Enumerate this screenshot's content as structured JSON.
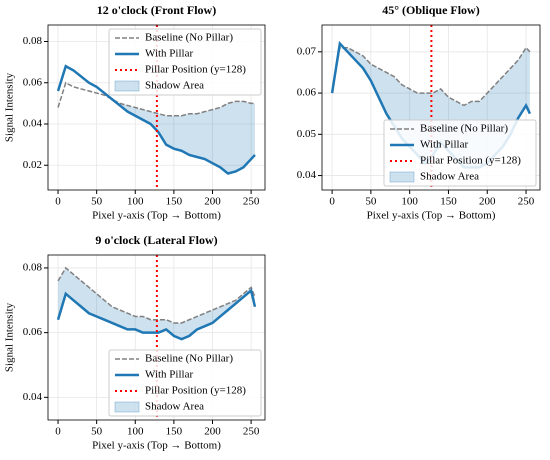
{
  "chart_data": [
    {
      "type": "line",
      "title": "12 o'clock (Front Flow)",
      "xlabel": "Pixel y-axis (Top → Bottom)",
      "ylabel": "Signal Intensity",
      "x": [
        0,
        10,
        20,
        30,
        40,
        50,
        60,
        70,
        80,
        90,
        100,
        110,
        120,
        130,
        140,
        150,
        160,
        170,
        180,
        190,
        200,
        210,
        220,
        230,
        240,
        250,
        255
      ],
      "series": [
        {
          "name": "Baseline (No Pillar)",
          "color": "#808080",
          "values": [
            0.048,
            0.06,
            0.058,
            0.057,
            0.056,
            0.055,
            0.054,
            0.052,
            0.05,
            0.049,
            0.048,
            0.047,
            0.046,
            0.045,
            0.044,
            0.044,
            0.044,
            0.045,
            0.045,
            0.046,
            0.047,
            0.048,
            0.05,
            0.051,
            0.051,
            0.05,
            0.05
          ]
        },
        {
          "name": "With Pillar",
          "color": "#1f77b4",
          "values": [
            0.056,
            0.068,
            0.066,
            0.063,
            0.06,
            0.058,
            0.055,
            0.052,
            0.049,
            0.046,
            0.044,
            0.042,
            0.04,
            0.036,
            0.03,
            0.028,
            0.027,
            0.025,
            0.024,
            0.023,
            0.021,
            0.019,
            0.016,
            0.017,
            0.019,
            0.023,
            0.025
          ]
        }
      ],
      "pillar": {
        "name": "Pillar Position (y=128)",
        "x": 128,
        "color": "#ff0000"
      },
      "shadow": {
        "name": "Shadow Area",
        "color": "#1f77b4"
      },
      "xlim": [
        -13,
        268
      ],
      "ylim": [
        0.008,
        0.088
      ],
      "xticks": [
        0,
        50,
        100,
        150,
        200,
        250
      ],
      "yticks": [
        0.02,
        0.04,
        0.06,
        0.08
      ],
      "grid": true,
      "legend": "upper right"
    },
    {
      "type": "line",
      "title": "45° (Oblique Flow)",
      "xlabel": "Pixel y-axis (Top → Bottom)",
      "x": [
        0,
        10,
        20,
        30,
        40,
        50,
        60,
        70,
        80,
        90,
        100,
        110,
        120,
        130,
        140,
        150,
        160,
        170,
        180,
        190,
        200,
        210,
        220,
        230,
        240,
        250,
        255
      ],
      "series": [
        {
          "name": "Baseline (No Pillar)",
          "color": "#808080",
          "values": [
            0.06,
            0.071,
            0.071,
            0.07,
            0.069,
            0.067,
            0.066,
            0.065,
            0.064,
            0.062,
            0.061,
            0.06,
            0.06,
            0.06,
            0.061,
            0.059,
            0.058,
            0.057,
            0.058,
            0.058,
            0.06,
            0.062,
            0.064,
            0.066,
            0.068,
            0.071,
            0.07
          ]
        },
        {
          "name": "With Pillar",
          "color": "#1f77b4",
          "values": [
            0.06,
            0.072,
            0.07,
            0.068,
            0.066,
            0.063,
            0.059,
            0.055,
            0.052,
            0.049,
            0.047,
            0.045,
            0.043,
            0.045,
            0.048,
            0.046,
            0.044,
            0.042,
            0.042,
            0.042,
            0.043,
            0.045,
            0.047,
            0.05,
            0.054,
            0.057,
            0.055
          ]
        }
      ],
      "pillar": {
        "name": "Pillar Position (y=128)",
        "x": 128,
        "color": "#ff0000"
      },
      "shadow": {
        "name": "Shadow Area",
        "color": "#1f77b4"
      },
      "xlim": [
        -13,
        268
      ],
      "ylim": [
        0.0365,
        0.0765
      ],
      "xticks": [
        0,
        50,
        100,
        150,
        200,
        250
      ],
      "yticks": [
        0.04,
        0.05,
        0.06,
        0.07
      ],
      "grid": true,
      "legend": "lower right"
    },
    {
      "type": "line",
      "title": "9 o'clock (Lateral Flow)",
      "xlabel": "Pixel y-axis (Top → Bottom)",
      "ylabel": "Signal Intensity",
      "x": [
        0,
        10,
        20,
        30,
        40,
        50,
        60,
        70,
        80,
        90,
        100,
        110,
        120,
        130,
        140,
        150,
        160,
        170,
        180,
        190,
        200,
        210,
        220,
        230,
        240,
        250,
        255
      ],
      "series": [
        {
          "name": "Baseline (No Pillar)",
          "color": "#808080",
          "values": [
            0.076,
            0.08,
            0.078,
            0.076,
            0.074,
            0.072,
            0.07,
            0.068,
            0.067,
            0.066,
            0.065,
            0.065,
            0.064,
            0.064,
            0.064,
            0.063,
            0.063,
            0.064,
            0.065,
            0.066,
            0.067,
            0.068,
            0.069,
            0.07,
            0.072,
            0.074,
            0.071
          ]
        },
        {
          "name": "With Pillar",
          "color": "#1f77b4",
          "values": [
            0.064,
            0.072,
            0.07,
            0.068,
            0.066,
            0.065,
            0.064,
            0.063,
            0.062,
            0.061,
            0.061,
            0.06,
            0.06,
            0.06,
            0.061,
            0.059,
            0.058,
            0.059,
            0.061,
            0.062,
            0.063,
            0.065,
            0.067,
            0.069,
            0.071,
            0.073,
            0.068
          ]
        }
      ],
      "pillar": {
        "name": "Pillar Position (y=128)",
        "x": 128,
        "color": "#ff0000"
      },
      "shadow": {
        "name": "Shadow Area",
        "color": "#1f77b4"
      },
      "xlim": [
        -13,
        268
      ],
      "ylim": [
        0.033,
        0.084
      ],
      "xticks": [
        0,
        50,
        100,
        150,
        200,
        250
      ],
      "yticks": [
        0.04,
        0.06,
        0.08
      ],
      "grid": true,
      "legend": "lower right"
    }
  ]
}
